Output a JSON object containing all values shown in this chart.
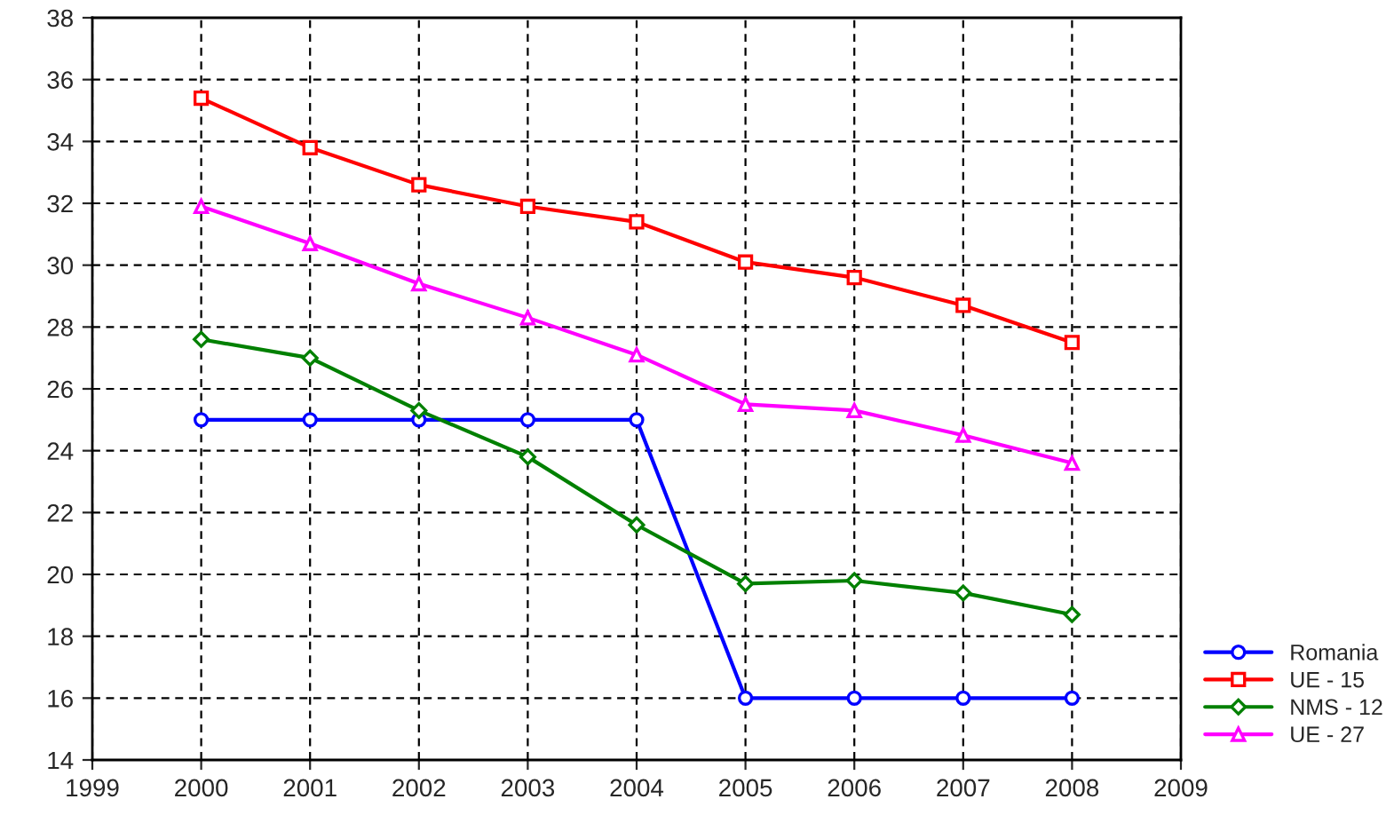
{
  "chart_data": {
    "type": "line",
    "x": [
      2000,
      2001,
      2002,
      2003,
      2004,
      2005,
      2006,
      2007,
      2008
    ],
    "series": [
      {
        "name": "Romania",
        "color": "#0000ff",
        "marker": "circle",
        "values": [
          25,
          25,
          25,
          25,
          25,
          16,
          16,
          16,
          16
        ]
      },
      {
        "name": "UE - 15",
        "color": "#ff0000",
        "marker": "square",
        "values": [
          35.4,
          33.8,
          32.6,
          31.9,
          31.4,
          30.1,
          29.6,
          28.7,
          27.5
        ]
      },
      {
        "name": "NMS - 12",
        "color": "#008000",
        "marker": "diamond",
        "values": [
          27.6,
          27.0,
          25.3,
          23.8,
          21.6,
          19.7,
          19.8,
          19.4,
          18.7
        ]
      },
      {
        "name": "UE - 27",
        "color": "#ff00ff",
        "marker": "triangle",
        "values": [
          31.9,
          30.7,
          29.4,
          28.3,
          27.1,
          25.5,
          25.3,
          24.5,
          23.6
        ]
      }
    ],
    "xlim": [
      1999,
      2009
    ],
    "xticks": [
      1999,
      2000,
      2001,
      2002,
      2003,
      2004,
      2005,
      2006,
      2007,
      2008,
      2009
    ],
    "ylim": [
      14,
      38
    ],
    "yticks": [
      14,
      16,
      18,
      20,
      22,
      24,
      26,
      28,
      30,
      32,
      34,
      36,
      38
    ],
    "grid": true,
    "legend": "bottom right",
    "line_style": "solid"
  }
}
